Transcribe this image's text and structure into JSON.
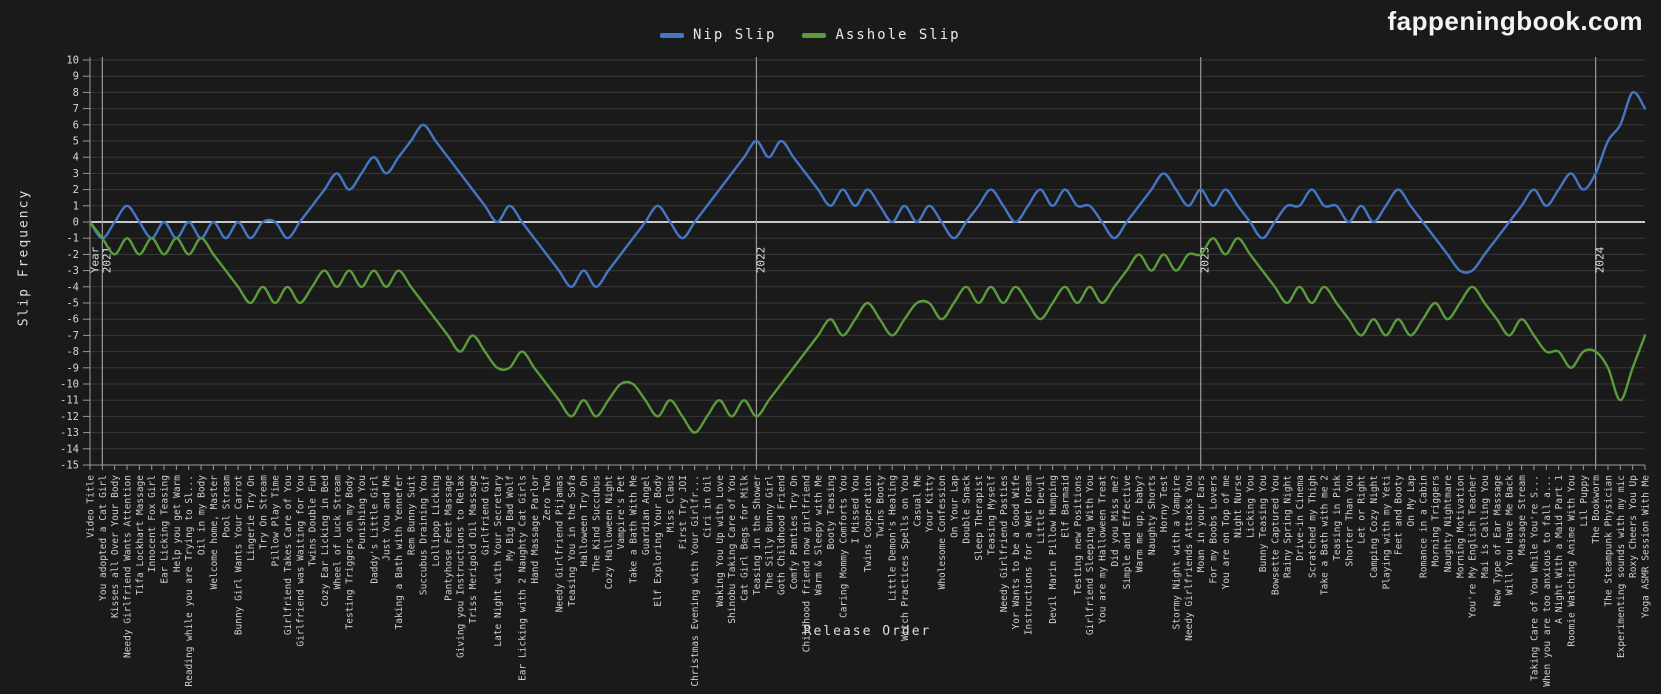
{
  "logo": {
    "text": "fappeningbook.com"
  },
  "legend": [
    {
      "label": "Nip Slip",
      "color": "#4476c4"
    },
    {
      "label": "Asshole Slip",
      "color": "#5a9b3c"
    }
  ],
  "colors": {
    "background": "#1a1a1a",
    "grid": "#383838",
    "zero_line": "#c9c9c9",
    "axis": "#9a9a9a",
    "year_line": "#9a9a9a",
    "tick_text": "#d8d8d8",
    "category_text": "#cfcfcf",
    "nip_slip": "#4476c4",
    "asshole_slip": "#5a9b3c"
  },
  "chart_data": {
    "type": "line",
    "title": "",
    "xlabel": "Release Order",
    "ylabel": "Slip Frequency",
    "ylim": [
      -15,
      10
    ],
    "y_tick_step": 1,
    "grid": true,
    "legend_position": "top",
    "smoothing": true,
    "categories": [
      "Video Title",
      "You adopted a Cat Girl",
      "Kisses all Over Your Body",
      "Needy Girlfriend Wants Attention",
      "Tifa Lockhart Massage",
      "Innocent Fox Girl",
      "Ear Licking Teasing",
      "Help you get Warm",
      "Reading while you are Trying to Sl...",
      "Oil in my Body",
      "Welcome home, Master",
      "Pool Stream",
      "Bunny Girl Wants Your Carrot",
      "Lingerie Try On",
      "Try On Stream",
      "Pillow Play Time",
      "Girlfriend Takes Care of You",
      "Girlfriend was Waiting for You",
      "Twins Double Fun",
      "Cozy Ear Licking in Bed",
      "Wheel of Luck Stream",
      "Testing Triggers on my Body",
      "Punishing You",
      "Daddy's Little Girl",
      "Just You and Me",
      "Taking a Bath with Yennefer",
      "Rem Bunny Suit",
      "Succubus Draining You",
      "Lollipop Licking",
      "Pantyhose Feet Massage",
      "Giving you Instructions to Relax",
      "Triss Merigold Oil Massage",
      "Girlfriend Gif",
      "Late Night with Your Secretary",
      "My Big Bad Wolf",
      "Ear Licking with 2 Naughty Cat Girls",
      "Hand Massage Parlor",
      "Zero Two",
      "Needy Girlfriend Pijamas",
      "Teasing You in the Sofa",
      "Halloween Try On",
      "The Kind Succubus",
      "Cozy Halloween Night",
      "Vampire's Pet",
      "Take a Bath With Me",
      "Guardian Angel",
      "Elf Exploring Your Body",
      "Miss Claus",
      "First Try JOI",
      "Christmas Evening with Your Girlfr...",
      "Ciri in Oil",
      "Waking You Up with Love",
      "Shinobu Taking Care of You",
      "Cat Girl Begs for Milk",
      "Teasing in the Shower",
      "The Silly Bunny Girl",
      "Goth Childhood Friend",
      "Comfy Panties Try On",
      "Childhood friend now girlfriend",
      "Warm & Sleepy with Me",
      "Booty Teasing",
      "Caring Mommy Comforts You",
      "I Missed You",
      "Twins Cooperation",
      "Twins Booty",
      "Little Demon's Healing",
      "Witch Practices Spells on You",
      "Casual Me",
      "Your Kitty",
      "Wholesome Confession",
      "On Your Lap",
      "Double Snack",
      "Sleep Therapist",
      "Teasing Myself",
      "Needy Girlfriend Pasties",
      "Yor Wants to be a Good Wife",
      "Instructions for a Wet Dream",
      "Little Devil",
      "Devil Marin Pillow Humping",
      "Elf Barmaid",
      "Testing new Positions",
      "Girlfriend Sleeping With You",
      "You are my Halloween Treat",
      "Did you Miss me?",
      "Simple and Effective",
      "Warm me up, baby?",
      "Naughty Shorts",
      "Horny Test",
      "Stormy Night with a Vampire",
      "Needy Girlfriends Attacks You",
      "Moan in your Ears",
      "For my Boobs Lovers",
      "You are on Top of me",
      "Night Nurse",
      "Licking You",
      "Bunny Teasing You",
      "Bowsette Captured You",
      "Rainy Spring Night",
      "Drive-in Cinema",
      "Scratched my Thigh",
      "Take a Bath with me 2",
      "Teasing in Pink",
      "Shorter Than You",
      "Let or Right",
      "Camping Cozy Night",
      "Playing with my Yeti",
      "Feet and Booty",
      "On My Lap",
      "Romance in a Cabin",
      "Morning Triggers",
      "Naughty Nightmare",
      "Morning Motivation",
      "You're My English Teacher",
      "Mai is Calling You",
      "New Type of Ear Massage",
      "Will You Have Me Back",
      "Massage Stream",
      "Taking Care of You While You're S...",
      "When you are too anxious to fall a...",
      "A Night With a Maid Part 1",
      "Roomie Watching Anime With You",
      "Lil Puppy",
      "The Bookworm",
      "The Steampunk Physician",
      "Experimenting sounds with my mic",
      "Roxy Cheers You Up",
      "Yoga ASMR Session With Me"
    ],
    "series": [
      {
        "name": "Nip Slip",
        "color": "#4476c4",
        "values": [
          0,
          -1,
          0,
          1,
          0,
          -1,
          0,
          -1,
          0,
          -1,
          0,
          -1,
          0,
          -1,
          0,
          0,
          -1,
          0,
          1,
          2,
          3,
          2,
          3,
          4,
          3,
          4,
          5,
          6,
          5,
          4,
          3,
          2,
          1,
          0,
          1,
          0,
          -1,
          -2,
          -3,
          -4,
          -3,
          -4,
          -3,
          -2,
          -1,
          0,
          1,
          0,
          -1,
          0,
          1,
          2,
          3,
          4,
          5,
          4,
          5,
          4,
          3,
          2,
          1,
          2,
          1,
          2,
          1,
          0,
          1,
          0,
          1,
          0,
          -1,
          0,
          1,
          2,
          1,
          0,
          1,
          2,
          1,
          2,
          1,
          1,
          0,
          -1,
          0,
          1,
          2,
          3,
          2,
          1,
          2,
          1,
          2,
          1,
          0,
          -1,
          0,
          1,
          1,
          2,
          1,
          1,
          0,
          1,
          0,
          1,
          2,
          1,
          0,
          -1,
          -2,
          -3,
          -3,
          -2,
          -1,
          0,
          1,
          2,
          1,
          2,
          3,
          2,
          3,
          5,
          6,
          8,
          7
        ]
      },
      {
        "name": "Asshole Slip",
        "color": "#5a9b3c",
        "values": [
          0,
          -1,
          -2,
          -1,
          -2,
          -1,
          -2,
          -1,
          -2,
          -1,
          -2,
          -3,
          -4,
          -5,
          -4,
          -5,
          -4,
          -5,
          -4,
          -3,
          -4,
          -3,
          -4,
          -3,
          -4,
          -3,
          -4,
          -5,
          -6,
          -7,
          -8,
          -7,
          -8,
          -9,
          -9,
          -8,
          -9,
          -10,
          -11,
          -12,
          -11,
          -12,
          -11,
          -10,
          -10,
          -11,
          -12,
          -11,
          -12,
          -13,
          -12,
          -11,
          -12,
          -11,
          -12,
          -11,
          -10,
          -9,
          -8,
          -7,
          -6,
          -7,
          -6,
          -5,
          -6,
          -7,
          -6,
          -5,
          -5,
          -6,
          -5,
          -4,
          -5,
          -4,
          -5,
          -4,
          -5,
          -6,
          -5,
          -4,
          -5,
          -4,
          -5,
          -4,
          -3,
          -2,
          -3,
          -2,
          -3,
          -2,
          -2,
          -1,
          -2,
          -1,
          -2,
          -3,
          -4,
          -5,
          -4,
          -5,
          -4,
          -5,
          -6,
          -7,
          -6,
          -7,
          -6,
          -7,
          -6,
          -5,
          -6,
          -5,
          -4,
          -5,
          -6,
          -7,
          -6,
          -7,
          -8,
          -8,
          -9,
          -8,
          -8,
          -9,
          -11,
          -9,
          -7
        ]
      }
    ],
    "year_markers": [
      {
        "label": "Year 2021",
        "category_index": 1
      },
      {
        "label": "2022",
        "category_index": 54
      },
      {
        "label": "2023",
        "category_index": 90
      },
      {
        "label": "2024",
        "category_index": 122
      }
    ]
  }
}
